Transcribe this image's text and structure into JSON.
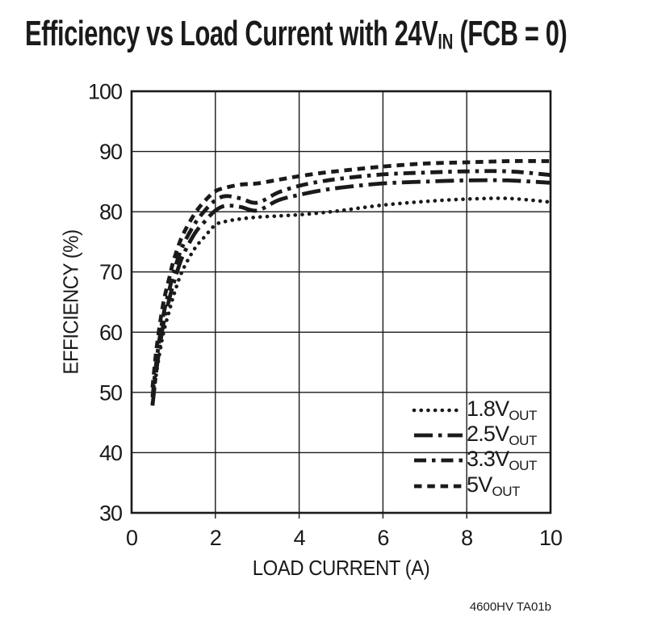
{
  "header": {
    "title_pre": "Efficiency vs Load Current with 24V",
    "title_sub": "IN",
    "title_post": " (FCB = 0)"
  },
  "footer": {
    "code": "4600HV TA01b"
  },
  "colors": {
    "ink": "#1a1a1a",
    "background": "#ffffff"
  },
  "chart_data": {
    "type": "line",
    "title": "Efficiency vs Load Current with 24VIN (FCB = 0)",
    "xlabel": "LOAD CURRENT (A)",
    "ylabel": "EFFICIENCY (%)",
    "xlim": [
      0,
      10
    ],
    "ylim": [
      30,
      100
    ],
    "x_ticks": [
      0,
      2,
      4,
      6,
      8,
      10
    ],
    "y_ticks": [
      30,
      40,
      50,
      60,
      70,
      80,
      90,
      100
    ],
    "grid": true,
    "legend_position": "lower-right-inside",
    "x": [
      0.5,
      0.6,
      0.75,
      0.9,
      1.0,
      1.2,
      1.5,
      1.75,
      2.0,
      2.25,
      2.6,
      3.0,
      3.5,
      4.0,
      4.5,
      5.0,
      6.0,
      7.0,
      8.0,
      9.0,
      10.0
    ],
    "series": [
      {
        "name": "1.8VOUT",
        "label_main": "1.8V",
        "label_sub": "OUT",
        "line_style": "dotted",
        "values": [
          48.2,
          53.5,
          59.5,
          63.5,
          66.0,
          70.0,
          73.8,
          75.9,
          77.8,
          78.4,
          78.8,
          79.1,
          79.3,
          79.5,
          79.8,
          80.2,
          81.1,
          81.7,
          82.1,
          82.2,
          81.6
        ]
      },
      {
        "name": "2.5VOUT",
        "label_main": "2.5V",
        "label_sub": "OUT",
        "line_style": "long-dash-dot",
        "values": [
          47.8,
          54.0,
          61.0,
          65.5,
          68.0,
          72.3,
          76.3,
          78.4,
          80.2,
          81.0,
          80.8,
          80.2,
          81.9,
          82.8,
          83.5,
          84.0,
          84.7,
          85.0,
          85.2,
          85.2,
          84.8
        ]
      },
      {
        "name": "3.3VOUT",
        "label_main": "3.3V",
        "label_sub": "OUT",
        "line_style": "dash-dot",
        "values": [
          49.2,
          55.5,
          62.5,
          67.0,
          69.8,
          74.0,
          77.9,
          80.2,
          81.9,
          82.6,
          82.2,
          81.5,
          83.2,
          84.3,
          85.0,
          85.5,
          86.2,
          86.5,
          86.7,
          86.7,
          86.1
        ]
      },
      {
        "name": "5VOUT",
        "label_main": "5V",
        "label_sub": "OUT",
        "line_style": "dashed",
        "values": [
          50.8,
          57.5,
          64.5,
          69.0,
          71.8,
          75.8,
          79.6,
          81.8,
          83.4,
          84.0,
          84.5,
          84.7,
          85.3,
          85.9,
          86.4,
          86.8,
          87.5,
          88.0,
          88.2,
          88.4,
          88.4
        ]
      }
    ]
  }
}
